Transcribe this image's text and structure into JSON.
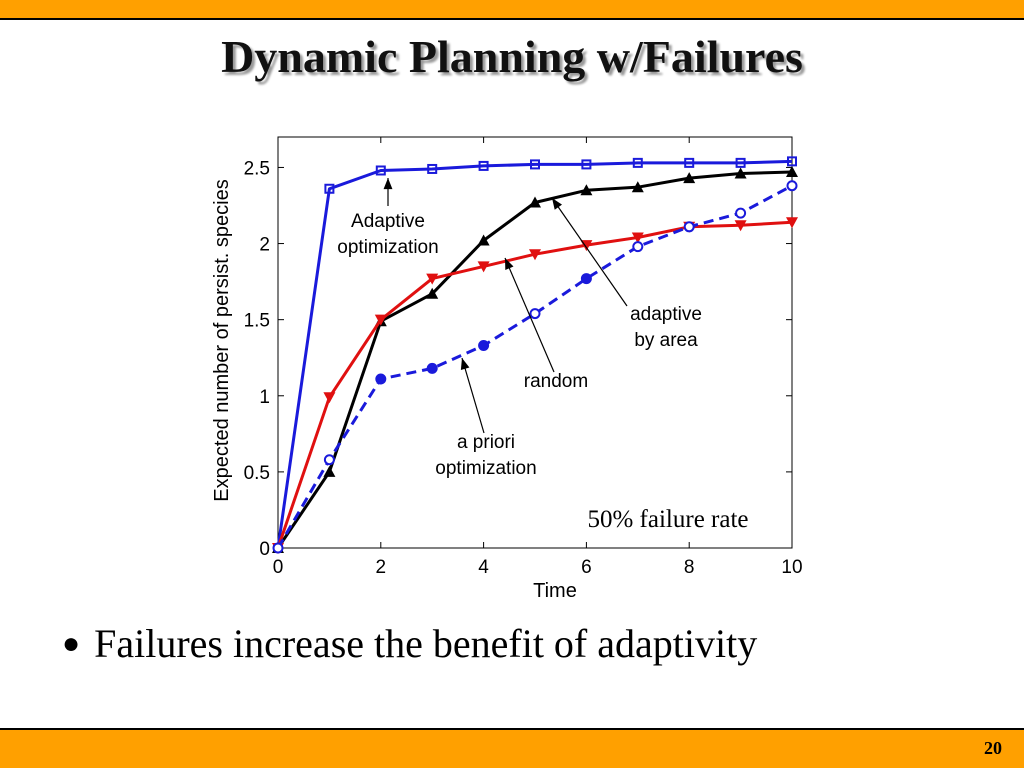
{
  "slide": {
    "title": "Dynamic Planning w/Failures",
    "bullet": "Failures increase the benefit of adaptivity",
    "page_number": "20"
  },
  "colors": {
    "bar": "#FFA000",
    "adaptive_optimization": "#1a1adb",
    "adaptive_by_area": "#000000",
    "random": "#e01010",
    "a_priori": "#1a1adb"
  },
  "chart_data": {
    "type": "line",
    "xlabel": "Time",
    "ylabel": "Expected number of persist. species",
    "xlim": [
      0,
      10
    ],
    "ylim": [
      0,
      2.7
    ],
    "xticks": [
      0,
      2,
      4,
      6,
      8,
      10
    ],
    "yticks": [
      0,
      0.5,
      1,
      1.5,
      2,
      2.5
    ],
    "ytick_labels": [
      "0",
      "0.5",
      "1",
      "1.5",
      "2",
      "2.5"
    ],
    "grid": false,
    "annotation_text": "50% failure rate",
    "series": [
      {
        "key": "adaptive_optimization",
        "label": [
          "Adaptive",
          "optimization"
        ],
        "style": "solid",
        "marker": "square-open",
        "color": "#1a1adb",
        "x": [
          0,
          1,
          2,
          3,
          4,
          5,
          6,
          7,
          8,
          9,
          10
        ],
        "y": [
          0,
          2.36,
          2.48,
          2.49,
          2.51,
          2.52,
          2.52,
          2.53,
          2.53,
          2.53,
          2.54
        ]
      },
      {
        "key": "adaptive_by_area",
        "label": [
          "adaptive",
          "by area"
        ],
        "style": "solid",
        "marker": "triangle-up",
        "color": "#000000",
        "x": [
          0,
          1,
          2,
          3,
          4,
          5,
          6,
          7,
          8,
          9,
          10
        ],
        "y": [
          0,
          0.5,
          1.49,
          1.67,
          2.02,
          2.27,
          2.35,
          2.37,
          2.43,
          2.46,
          2.47
        ]
      },
      {
        "key": "random",
        "label": [
          "random"
        ],
        "style": "solid",
        "marker": "triangle-down",
        "color": "#e01010",
        "x": [
          0,
          1,
          2,
          3,
          4,
          5,
          6,
          7,
          8,
          9,
          10
        ],
        "y": [
          0,
          0.99,
          1.5,
          1.77,
          1.85,
          1.93,
          1.99,
          2.04,
          2.11,
          2.12,
          2.14
        ]
      },
      {
        "key": "a_priori",
        "label": [
          "a priori",
          "optimization"
        ],
        "style": "dashed",
        "marker": "circle-mixed",
        "color": "#1a1adb",
        "filled_points": [
          2,
          3,
          4,
          6
        ],
        "x": [
          0,
          1,
          2,
          3,
          4,
          5,
          6,
          7,
          8,
          9,
          10
        ],
        "y": [
          0,
          0.58,
          1.11,
          1.18,
          1.33,
          1.54,
          1.77,
          1.98,
          2.11,
          2.2,
          2.38
        ]
      }
    ]
  }
}
